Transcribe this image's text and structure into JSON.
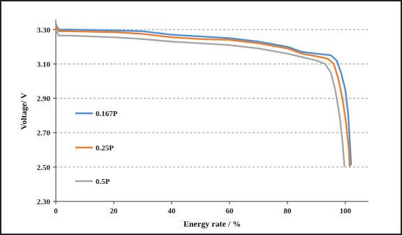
{
  "chart_data": {
    "type": "line",
    "title": "",
    "xlabel": "Energy rate / %",
    "ylabel": "Voltage/ V",
    "xlim": [
      0,
      108
    ],
    "ylim": [
      2.3,
      3.35
    ],
    "x_ticks": [
      0,
      20,
      40,
      60,
      80,
      100
    ],
    "y_ticks": [
      2.3,
      2.5,
      2.7,
      2.9,
      3.1,
      3.3
    ],
    "x_tick_labels": [
      "0",
      "20",
      "40",
      "60",
      "80",
      "100"
    ],
    "y_tick_labels": [
      "2.30",
      "2.50",
      "2.70",
      "2.90",
      "3.10",
      "3.30"
    ],
    "grid": "horizontal dashed",
    "legend_position": "left",
    "series": [
      {
        "name": "0.167P",
        "color": "#4a90d9",
        "points": [
          [
            0,
            3.33
          ],
          [
            1,
            3.3
          ],
          [
            5,
            3.3
          ],
          [
            20,
            3.295
          ],
          [
            30,
            3.29
          ],
          [
            40,
            3.27
          ],
          [
            50,
            3.26
          ],
          [
            60,
            3.25
          ],
          [
            70,
            3.23
          ],
          [
            80,
            3.2
          ],
          [
            85,
            3.17
          ],
          [
            90,
            3.16
          ],
          [
            95,
            3.15
          ],
          [
            97,
            3.12
          ],
          [
            98.5,
            3.05
          ],
          [
            100,
            2.95
          ],
          [
            101,
            2.8
          ],
          [
            101.7,
            2.6
          ],
          [
            102,
            2.51
          ]
        ]
      },
      {
        "name": "0.25P",
        "color": "#f07d2a",
        "points": [
          [
            0,
            3.32
          ],
          [
            1,
            3.29
          ],
          [
            5,
            3.29
          ],
          [
            20,
            3.285
          ],
          [
            30,
            3.275
          ],
          [
            40,
            3.255
          ],
          [
            50,
            3.245
          ],
          [
            60,
            3.24
          ],
          [
            70,
            3.22
          ],
          [
            80,
            3.19
          ],
          [
            85,
            3.16
          ],
          [
            90,
            3.145
          ],
          [
            94,
            3.13
          ],
          [
            96,
            3.1
          ],
          [
            97.5,
            3.02
          ],
          [
            99,
            2.9
          ],
          [
            100.3,
            2.75
          ],
          [
            101.2,
            2.6
          ],
          [
            101.5,
            2.5
          ]
        ]
      },
      {
        "name": "0.5P",
        "color": "#a6a6a6",
        "points": [
          [
            0,
            3.3
          ],
          [
            1,
            3.265
          ],
          [
            5,
            3.265
          ],
          [
            20,
            3.255
          ],
          [
            30,
            3.245
          ],
          [
            40,
            3.23
          ],
          [
            50,
            3.22
          ],
          [
            60,
            3.21
          ],
          [
            70,
            3.19
          ],
          [
            80,
            3.16
          ],
          [
            85,
            3.14
          ],
          [
            90,
            3.12
          ],
          [
            93,
            3.1
          ],
          [
            95,
            3.05
          ],
          [
            96.5,
            2.95
          ],
          [
            98,
            2.8
          ],
          [
            99,
            2.65
          ],
          [
            99.7,
            2.5
          ]
        ]
      }
    ]
  }
}
